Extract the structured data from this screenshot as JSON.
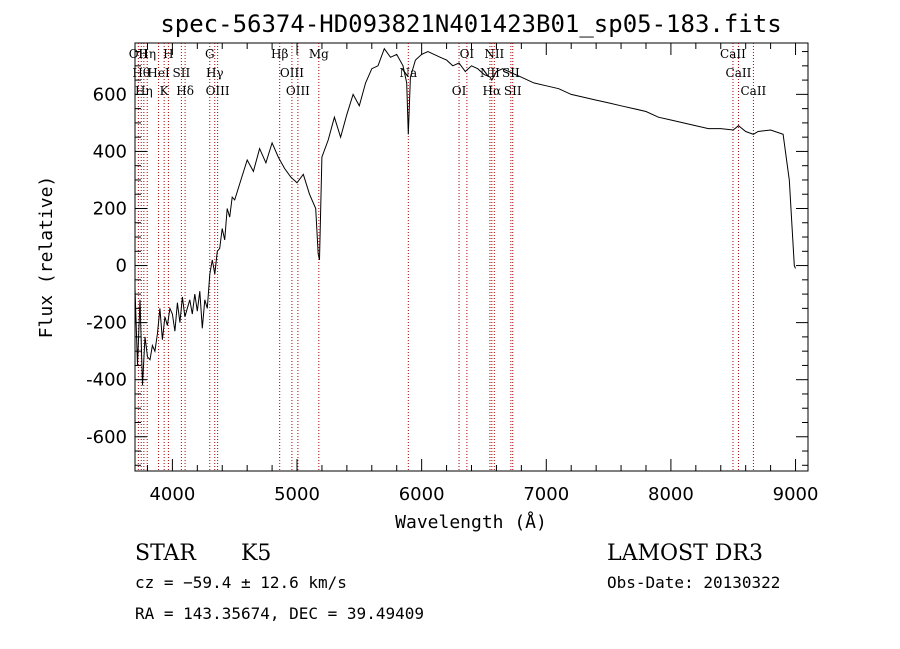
{
  "chart_data": {
    "type": "line",
    "title": "spec-56374-HD093821N401423B01_sp05-183.fits",
    "xlabel": "Wavelength (Å)",
    "ylabel": "Flux (relative)",
    "xlim": [
      3700,
      9100
    ],
    "ylim": [
      -720,
      780
    ],
    "xticks": [
      4000,
      5000,
      6000,
      7000,
      8000,
      9000
    ],
    "yticks": [
      -600,
      -400,
      -200,
      0,
      200,
      400,
      600
    ],
    "line_color": "#000000",
    "marker_color": "#aa0000",
    "series": [
      {
        "x": [
          3700,
          3720,
          3740,
          3760,
          3780,
          3800,
          3820,
          3840,
          3860,
          3880,
          3900,
          3920,
          3940,
          3960,
          3980,
          4000,
          4020,
          4040,
          4060,
          4080,
          4100,
          4120,
          4140,
          4160,
          4180,
          4200,
          4220,
          4240,
          4260,
          4280,
          4300,
          4320,
          4340,
          4360,
          4380,
          4400,
          4420,
          4440,
          4460,
          4480,
          4500,
          4550,
          4600,
          4650,
          4700,
          4750,
          4800,
          4850,
          4900,
          4950,
          5000,
          5050,
          5100,
          5150,
          5170,
          5180,
          5200,
          5250,
          5300,
          5350,
          5400,
          5450,
          5500,
          5550,
          5600,
          5650,
          5700,
          5750,
          5800,
          5850,
          5880,
          5893,
          5910,
          5950,
          6000,
          6050,
          6100,
          6150,
          6200,
          6250,
          6300,
          6350,
          6400,
          6450,
          6500,
          6550,
          6563,
          6600,
          6650,
          6700,
          6750,
          6800,
          6900,
          7000,
          7100,
          7200,
          7300,
          7400,
          7500,
          7600,
          7700,
          7800,
          7900,
          8000,
          8100,
          8200,
          8300,
          8400,
          8500,
          8542,
          8600,
          8662,
          8700,
          8800,
          8900,
          8950,
          8990,
          9000
        ],
        "y": [
          -80,
          -350,
          -120,
          -420,
          -250,
          -320,
          -330,
          -280,
          -300,
          -240,
          -150,
          -260,
          -180,
          -210,
          -150,
          -170,
          -230,
          -130,
          -200,
          -110,
          -180,
          -150,
          -120,
          -170,
          -100,
          -160,
          -90,
          -220,
          -120,
          -150,
          -30,
          20,
          -30,
          50,
          60,
          130,
          90,
          200,
          170,
          240,
          230,
          300,
          370,
          330,
          410,
          360,
          430,
          380,
          340,
          310,
          290,
          320,
          250,
          200,
          40,
          20,
          380,
          440,
          520,
          450,
          530,
          600,
          560,
          640,
          690,
          700,
          760,
          730,
          740,
          700,
          640,
          460,
          660,
          720,
          740,
          750,
          740,
          730,
          720,
          700,
          710,
          680,
          700,
          690,
          670,
          660,
          650,
          680,
          690,
          680,
          670,
          660,
          640,
          630,
          620,
          600,
          590,
          580,
          570,
          560,
          550,
          540,
          520,
          510,
          500,
          490,
          480,
          480,
          475,
          490,
          470,
          460,
          470,
          475,
          460,
          300,
          0,
          -10
        ]
      }
    ],
    "lines": [
      {
        "x": 3727,
        "label": "OII"
      },
      {
        "x": 3750,
        "label": "Hθ"
      },
      {
        "x": 3771,
        "label": "Hη"
      },
      {
        "x": 3798,
        "label": "Hη"
      },
      {
        "x": 3889,
        "label": "HeI"
      },
      {
        "x": 3934,
        "label": "K"
      },
      {
        "x": 3968,
        "label": "H"
      },
      {
        "x": 4072,
        "label": "SII"
      },
      {
        "x": 4102,
        "label": "Hδ"
      },
      {
        "x": 4300,
        "label": "G"
      },
      {
        "x": 4340,
        "label": "Hγ"
      },
      {
        "x": 4363,
        "label": "OIII"
      },
      {
        "x": 4861,
        "label": "Hβ"
      },
      {
        "x": 4959,
        "label": "OIII"
      },
      {
        "x": 5007,
        "label": "OIII"
      },
      {
        "x": 5175,
        "label": "Mg"
      },
      {
        "x": 5893,
        "label": "Na"
      },
      {
        "x": 6300,
        "label": "OI"
      },
      {
        "x": 6363,
        "label": "OI"
      },
      {
        "x": 6548,
        "label": "NII"
      },
      {
        "x": 6563,
        "label": "Hα"
      },
      {
        "x": 6583,
        "label": "NII"
      },
      {
        "x": 6716,
        "label": "SII"
      },
      {
        "x": 6731,
        "label": "SII"
      },
      {
        "x": 8498,
        "label": "CaII"
      },
      {
        "x": 8542,
        "label": "CaII"
      },
      {
        "x": 8662,
        "label": "CaII"
      }
    ]
  },
  "info": {
    "object_class": "STAR",
    "subclass": "K5",
    "cz": "cz = −59.4 ± 12.6 km/s",
    "coords": "RA = 143.35674, DEC =  39.49409",
    "survey": "LAMOST DR3",
    "obs_date": "Obs-Date: 20130322"
  }
}
